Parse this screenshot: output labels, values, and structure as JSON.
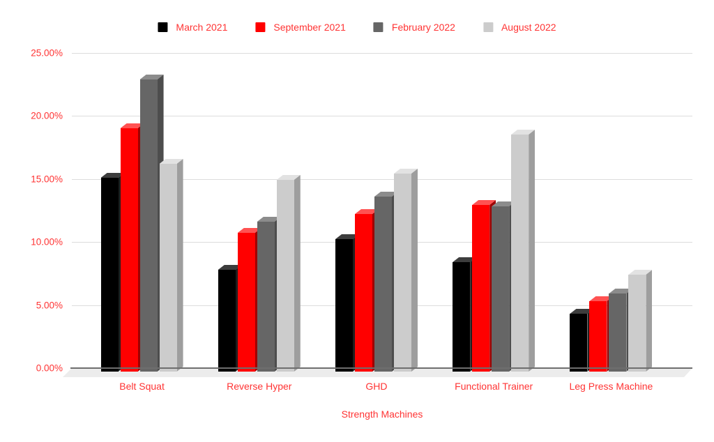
{
  "chart_data": {
    "type": "bar",
    "style": "3d-column",
    "title": "",
    "xlabel": "Strength Machines",
    "ylabel": "",
    "categories": [
      "Belt Squat",
      "Reverse Hyper",
      "GHD",
      "Functional Trainer",
      "Leg Press Machine"
    ],
    "series": [
      {
        "name": "March 2021",
        "color": "#000000",
        "top_color": "#3d3d3d",
        "side_color": "#1f1f1f",
        "values": [
          15.4,
          8.1,
          10.5,
          8.7,
          4.6
        ]
      },
      {
        "name": "September 2021",
        "color": "#ff0000",
        "top_color": "#ff5252",
        "side_color": "#9e0000",
        "values": [
          19.3,
          11.0,
          12.5,
          13.2,
          5.6
        ]
      },
      {
        "name": "February 2022",
        "color": "#666666",
        "top_color": "#8c8c8c",
        "side_color": "#4d4d4d",
        "values": [
          23.2,
          11.9,
          13.9,
          13.1,
          6.2
        ]
      },
      {
        "name": "August 2022",
        "color": "#cccccc",
        "top_color": "#e2e2e2",
        "side_color": "#9e9e9e",
        "values": [
          16.5,
          15.2,
          15.7,
          18.8,
          7.7
        ]
      }
    ],
    "y_ticks": [
      "25.00%",
      "20.00%",
      "15.00%",
      "10.00%",
      "5.00%",
      "0.00%"
    ],
    "ylim": [
      0,
      25
    ],
    "grid": true,
    "legend_position": "top",
    "legend_entries": [
      "March 2021",
      "September 2021",
      "February 2022",
      "August 2022"
    ],
    "colors": {
      "label_text": "#ff3333",
      "gridline": "#dcdcdc",
      "baseline": "#6e6e6e",
      "floor": "#ececec",
      "background": "#ffffff"
    }
  }
}
